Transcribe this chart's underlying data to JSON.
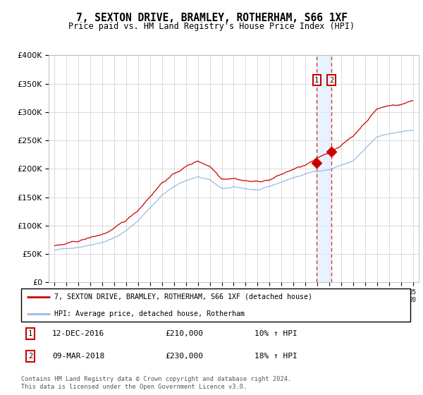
{
  "title": "7, SEXTON DRIVE, BRAMLEY, ROTHERHAM, S66 1XF",
  "subtitle": "Price paid vs. HM Land Registry's House Price Index (HPI)",
  "legend_line1": "7, SEXTON DRIVE, BRAMLEY, ROTHERHAM, S66 1XF (detached house)",
  "legend_line2": "HPI: Average price, detached house, Rotherham",
  "sale1_date": "12-DEC-2016",
  "sale1_price": 210000,
  "sale1_label": "£210,000",
  "sale1_pct": "10%",
  "sale1_dir": "↑",
  "sale2_date": "09-MAR-2018",
  "sale2_price": 230000,
  "sale2_label": "£230,000",
  "sale2_pct": "18%",
  "sale2_dir": "↑",
  "footer": "Contains HM Land Registry data © Crown copyright and database right 2024.\nThis data is licensed under the Open Government Licence v3.0.",
  "property_color": "#cc0000",
  "hpi_color": "#99bbdd",
  "vline_color": "#dd2222",
  "shade_color": "#ddeeff",
  "marker_box_color": "#cc0000",
  "bg_color": "#ffffff",
  "grid_color": "#cccccc",
  "ylim": [
    0,
    400000
  ],
  "yticks": [
    0,
    50000,
    100000,
    150000,
    200000,
    250000,
    300000,
    350000,
    400000
  ],
  "sale1_year": 2016.958,
  "sale2_year": 2018.19,
  "n_months": 361
}
